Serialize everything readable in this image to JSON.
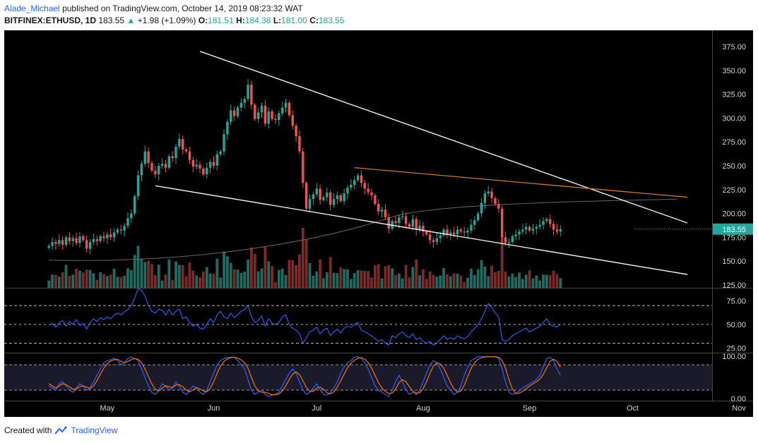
{
  "header": {
    "author": "Alade_Michael",
    "published_text": "published on TradingView.com, October 14, 2019 08:23:32 WAT",
    "symbol": "BITFINEX:ETHUSD, 1D",
    "last": "183.55",
    "change_arrow": "▲",
    "change": "+1.98 (+1.09%)",
    "o_label": "O:",
    "o_value": "181.51",
    "h_label": "H:",
    "h_value": "184.38",
    "l_label": "L:",
    "l_value": "181.00",
    "c_label": "C:",
    "c_value": "183.55"
  },
  "footer": {
    "created_with": "Created with",
    "brand": "TradingView",
    "logo_icon": "tradingview-logo-icon"
  },
  "colors": {
    "up": "#26a69a",
    "down": "#ef5350",
    "up_volume": "#1f6b61",
    "down_volume": "#7b2a2a",
    "background": "#000000",
    "trendline": "#ffffff",
    "resistance": "#c8782c",
    "ma": "#666666",
    "rsi": "#2962ff",
    "stoch_k": "#2962ff",
    "stoch_d": "#ff6d00",
    "last_price_bg": "#26a69a"
  },
  "chart_data": [
    {
      "type": "candlestick",
      "symbol": "BITFINEX:ETHUSD",
      "interval": "1D",
      "x_labels": [
        "May",
        "Jun",
        "Jul",
        "Aug",
        "Sep",
        "Oct",
        "Nov"
      ],
      "y_ticks": [
        "375.00",
        "350.00",
        "325.00",
        "300.00",
        "275.00",
        "250.00",
        "225.00",
        "200.00",
        "175.00",
        "150.00",
        "125.00"
      ],
      "ylim": [
        122,
        392
      ],
      "last_price_label": "183.55",
      "start_date": "2019-04-14",
      "end_date": "2019-10-14",
      "close_series": [
        166,
        170,
        168,
        172,
        167,
        175,
        171,
        174,
        169,
        176,
        172,
        163,
        170,
        173,
        171,
        176,
        174,
        178,
        175,
        180,
        183,
        182,
        187,
        195,
        200,
        218,
        240,
        252,
        265,
        253,
        245,
        241,
        250,
        252,
        248,
        260,
        258,
        270,
        278,
        267,
        265,
        256,
        249,
        251,
        247,
        241,
        248,
        254,
        250,
        262,
        265,
        283,
        296,
        308,
        302,
        311,
        316,
        320,
        335,
        314,
        299,
        306,
        313,
        294,
        307,
        299,
        298,
        305,
        311,
        316,
        303,
        292,
        281,
        265,
        232,
        205,
        215,
        220,
        226,
        214,
        217,
        222,
        209,
        215,
        219,
        213,
        221,
        227,
        230,
        235,
        240,
        232,
        226,
        222,
        219,
        210,
        202,
        204,
        196,
        184,
        192,
        190,
        196,
        197,
        189,
        186,
        194,
        183,
        187,
        181,
        178,
        172,
        170,
        174,
        177,
        183,
        178,
        180,
        178,
        183,
        181,
        180,
        182,
        188,
        193,
        200,
        211,
        221,
        223,
        216,
        210,
        205,
        175,
        169,
        170,
        176,
        178,
        181,
        183,
        186,
        182,
        184,
        186,
        188,
        192,
        194,
        189,
        183,
        181,
        183.55
      ],
      "trendlines": [
        {
          "from": [
            "2019-05-28",
            370
          ],
          "to": [
            "2019-10-17",
            190
          ]
        },
        {
          "from": [
            "2019-05-15",
            229
          ],
          "to": [
            "2019-10-17",
            136
          ]
        },
        {
          "from": [
            "2019-07-12",
            248
          ],
          "to": [
            "2019-10-17",
            217
          ]
        }
      ],
      "moving_average": {
        "from": [
          "2019-04-14",
          151
        ],
        "to": [
          "2019-10-14",
          215
        ]
      }
    },
    {
      "type": "line",
      "name": "RSI",
      "y_ticks": [
        "75.00",
        "50.00",
        "25.00"
      ],
      "ylim": [
        20,
        88
      ],
      "bands": [
        70,
        50,
        30
      ],
      "values": [
        50,
        51,
        47,
        52,
        54,
        48,
        53,
        50,
        55,
        49,
        51,
        45,
        52,
        56,
        53,
        57,
        55,
        58,
        56,
        60,
        62,
        60,
        63,
        66,
        70,
        78,
        88,
        86,
        80,
        70,
        64,
        62,
        66,
        65,
        60,
        66,
        60,
        64,
        66,
        56,
        58,
        52,
        48,
        50,
        46,
        45,
        50,
        56,
        52,
        60,
        64,
        58,
        56,
        62,
        57,
        60,
        64,
        66,
        70,
        58,
        52,
        54,
        59,
        48,
        56,
        51,
        50,
        52,
        58,
        60,
        50,
        46,
        44,
        40,
        30,
        36,
        42,
        44,
        47,
        40,
        44,
        46,
        38,
        42,
        45,
        41,
        46,
        48,
        47,
        50,
        52,
        44,
        42,
        40,
        38,
        35,
        32,
        34,
        30,
        28,
        38,
        36,
        40,
        42,
        38,
        36,
        40,
        34,
        36,
        32,
        30,
        32,
        28,
        30,
        34,
        38,
        34,
        36,
        34,
        38,
        36,
        35,
        37,
        42,
        46,
        50,
        56,
        64,
        72,
        68,
        62,
        58,
        34,
        32,
        34,
        38,
        40,
        42,
        44,
        46,
        42,
        44,
        46,
        48,
        52,
        56,
        50,
        48,
        47,
        50
      ]
    },
    {
      "type": "line",
      "name": "Stochastic RSI",
      "y_ticks": [
        "100.00",
        "0.00"
      ],
      "ylim": [
        -5,
        107
      ],
      "bands": [
        80,
        20
      ],
      "series": [
        {
          "values": [
            30,
            25,
            20,
            35,
            40,
            30,
            20,
            15,
            25,
            35,
            30,
            20,
            25,
            40,
            55,
            70,
            85,
            90,
            92,
            95,
            90,
            80,
            85,
            95,
            98,
            95,
            90,
            70,
            50,
            30,
            15,
            10,
            20,
            35,
            30,
            20,
            25,
            40,
            30,
            15,
            10,
            20,
            30,
            25,
            15,
            10,
            20,
            40,
            60,
            80,
            90,
            95,
            97,
            98,
            98,
            90,
            80,
            70,
            45,
            20,
            10,
            15,
            20,
            10,
            5,
            8,
            10,
            15,
            30,
            45,
            60,
            70,
            60,
            40,
            20,
            10,
            15,
            25,
            35,
            20,
            10,
            8,
            15,
            25,
            40,
            60,
            75,
            85,
            90,
            98,
            99,
            95,
            85,
            70,
            50,
            30,
            20,
            15,
            10,
            5,
            20,
            40,
            55,
            40,
            20,
            10,
            15,
            10,
            20,
            40,
            60,
            80,
            90,
            85,
            70,
            50,
            30,
            20,
            10,
            15,
            30,
            55,
            75,
            90,
            95,
            100,
            100,
            98,
            100,
            99,
            100,
            95,
            70,
            40,
            15,
            10,
            12,
            18,
            25,
            30,
            35,
            40,
            45,
            55,
            75,
            95,
            98,
            90,
            70,
            55
          ]
        },
        {
          "values": [
            35,
            30,
            25,
            30,
            35,
            33,
            28,
            22,
            23,
            28,
            30,
            27,
            24,
            30,
            42,
            58,
            72,
            83,
            89,
            92,
            93,
            88,
            85,
            88,
            92,
            95,
            93,
            85,
            70,
            52,
            35,
            22,
            18,
            25,
            30,
            28,
            26,
            32,
            33,
            28,
            20,
            16,
            20,
            26,
            23,
            18,
            16,
            24,
            40,
            60,
            77,
            88,
            94,
            97,
            98,
            96,
            92,
            85,
            72,
            50,
            30,
            18,
            15,
            15,
            12,
            9,
            9,
            11,
            18,
            30,
            45,
            58,
            63,
            57,
            42,
            26,
            17,
            17,
            25,
            27,
            22,
            14,
            11,
            16,
            27,
            42,
            58,
            73,
            84,
            91,
            95,
            97,
            93,
            85,
            72,
            55,
            38,
            25,
            17,
            12,
            13,
            23,
            38,
            45,
            40,
            28,
            18,
            13,
            14,
            23,
            40,
            60,
            77,
            85,
            82,
            72,
            55,
            37,
            23,
            15,
            18,
            32,
            52,
            72,
            85,
            93,
            97,
            99,
            99,
            99,
            99,
            98,
            90,
            72,
            45,
            22,
            12,
            13,
            17,
            23,
            30,
            35,
            40,
            46,
            57,
            73,
            88,
            93,
            88,
            75
          ]
        }
      ]
    }
  ]
}
